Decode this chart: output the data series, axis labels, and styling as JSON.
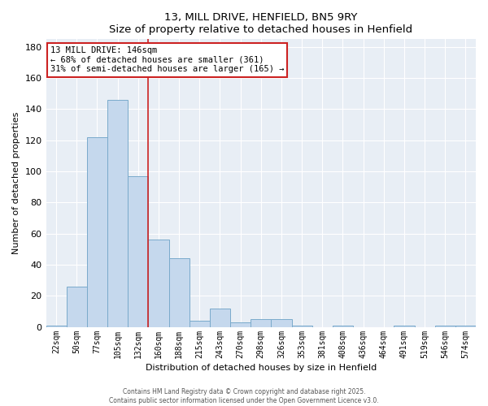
{
  "title1": "13, MILL DRIVE, HENFIELD, BN5 9RY",
  "title2": "Size of property relative to detached houses in Henfield",
  "xlabel": "Distribution of detached houses by size in Henfield",
  "ylabel": "Number of detached properties",
  "bin_labels": [
    "22sqm",
    "50sqm",
    "77sqm",
    "105sqm",
    "132sqm",
    "160sqm",
    "188sqm",
    "215sqm",
    "243sqm",
    "270sqm",
    "298sqm",
    "326sqm",
    "353sqm",
    "381sqm",
    "408sqm",
    "436sqm",
    "464sqm",
    "491sqm",
    "519sqm",
    "546sqm",
    "574sqm"
  ],
  "bar_heights": [
    1,
    26,
    122,
    146,
    97,
    56,
    44,
    4,
    12,
    3,
    5,
    5,
    1,
    0,
    1,
    0,
    0,
    1,
    0,
    1,
    1
  ],
  "bar_color": "#c5d8ed",
  "bar_edge_color": "#7aaacb",
  "red_line_x": 4.5,
  "annotation_text": "13 MILL DRIVE: 146sqm\n← 68% of detached houses are smaller (361)\n31% of semi-detached houses are larger (165) →",
  "ylim": [
    0,
    185
  ],
  "yticks": [
    0,
    20,
    40,
    60,
    80,
    100,
    120,
    140,
    160,
    180
  ],
  "background_color": "#e8eef5",
  "grid_color": "#ffffff",
  "footer_text1": "Contains HM Land Registry data © Crown copyright and database right 2025.",
  "footer_text2": "Contains public sector information licensed under the Open Government Licence v3.0."
}
